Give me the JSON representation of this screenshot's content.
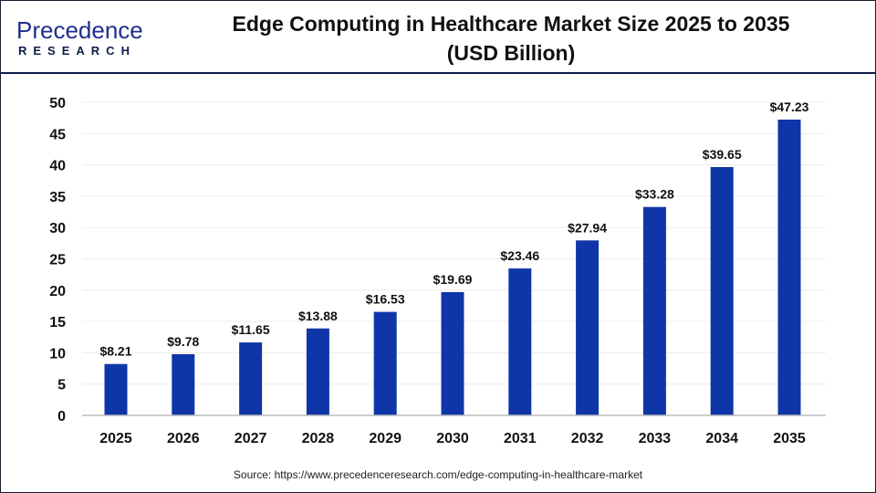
{
  "logo": {
    "top": "Precedence",
    "bottom": "RESEARCH"
  },
  "source": "Source: https://www.precedenceresearch.com/edge-computing-in-healthcare-market",
  "colors": {
    "bar": "#0f36a8",
    "header_line": "#0d1b4a",
    "grid": "#ececec"
  },
  "chart_data": {
    "type": "bar",
    "title": "Edge Computing in Healthcare Market Size 2025 to 2035",
    "subtitle": "(USD Billion)",
    "categories": [
      "2025",
      "2026",
      "2027",
      "2028",
      "2029",
      "2030",
      "2031",
      "2032",
      "2033",
      "2034",
      "2035"
    ],
    "values": [
      8.21,
      9.78,
      11.65,
      13.88,
      16.53,
      19.69,
      23.46,
      27.94,
      33.28,
      39.65,
      47.23
    ],
    "data_labels": [
      "$8.21",
      "$9.78",
      "$11.65",
      "$13.88",
      "$16.53",
      "$19.69",
      "$23.46",
      "$27.94",
      "$33.28",
      "$39.65",
      "$47.23"
    ],
    "yticks": [
      0,
      5,
      10,
      15,
      20,
      25,
      30,
      35,
      40,
      45,
      50
    ],
    "ylim": [
      0,
      50
    ],
    "xlabel": "",
    "ylabel": "",
    "grid": true,
    "legend": "none"
  }
}
